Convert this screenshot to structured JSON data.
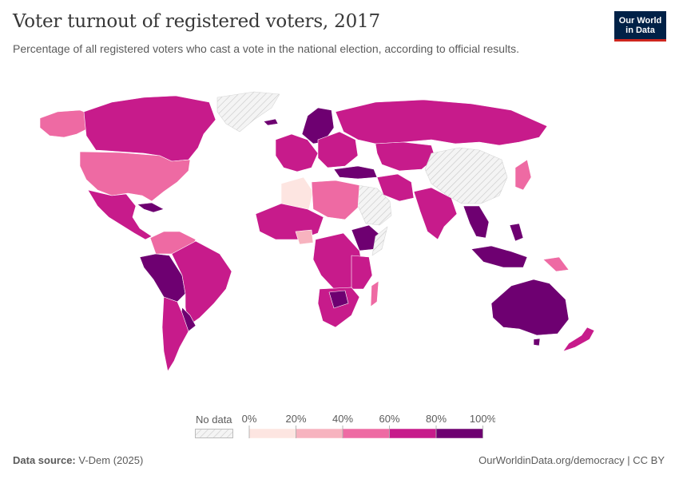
{
  "title": "Voter turnout of registered voters, 2017",
  "subtitle": "Percentage of all registered voters who cast a vote in the national election, according to official results.",
  "logo": {
    "line1": "Our World",
    "line2": "in Data"
  },
  "legend": {
    "no_data_label": "No data",
    "ticks": [
      "0%",
      "20%",
      "40%",
      "60%",
      "80%",
      "100%"
    ],
    "colors": [
      "#fde5e1",
      "#f7b3bf",
      "#ee6aa3",
      "#c71b8b",
      "#6e0071"
    ]
  },
  "map_colors": {
    "ocean": "#ffffff",
    "no_data": "#efefef",
    "bin_0_20": "#fde5e1",
    "bin_20_40": "#f7b3bf",
    "bin_40_60": "#ee6aa3",
    "bin_60_80": "#c71b8b",
    "bin_80_100": "#6e0071"
  },
  "footer": {
    "source_label": "Data source:",
    "source_value": "V-Dem (2025)",
    "url": "OurWorldinData.org/democracy | CC BY"
  }
}
